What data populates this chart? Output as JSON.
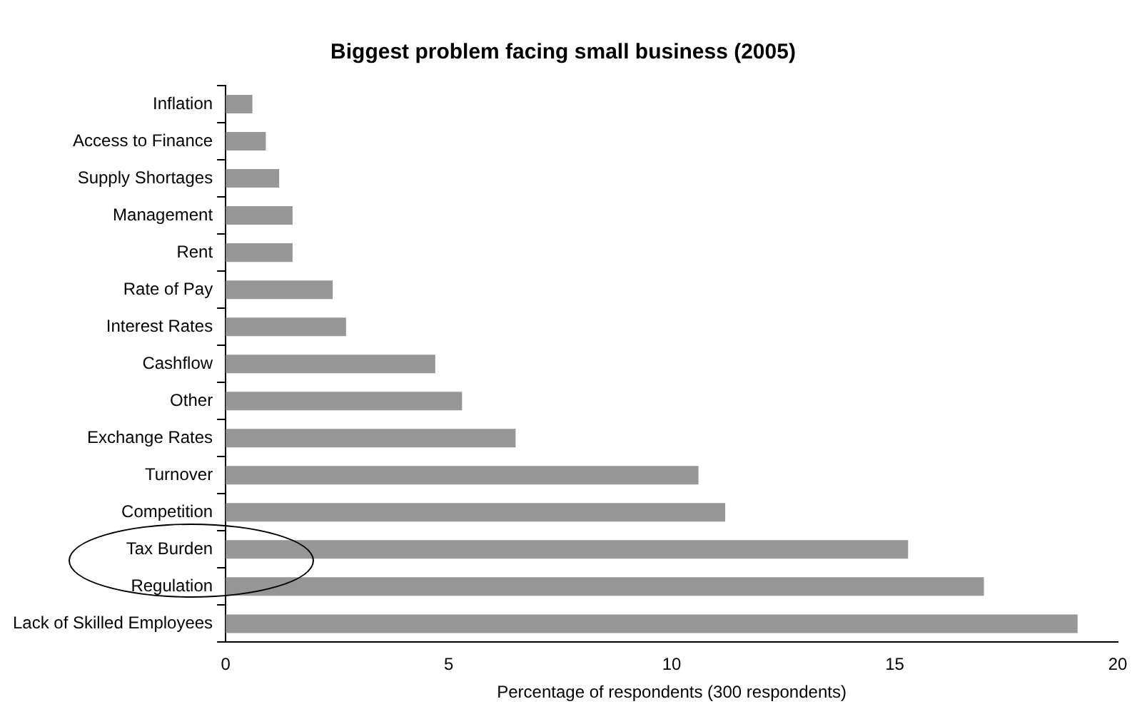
{
  "chart_data": {
    "type": "bar",
    "orientation": "horizontal",
    "title": "Biggest problem facing small business (2005)",
    "xlabel": "Percentage of respondents (300 respondents)",
    "categories": [
      "Inflation",
      "Access to Finance",
      "Supply Shortages",
      "Management",
      "Rent",
      "Rate of Pay",
      "Interest Rates",
      "Cashflow",
      "Other",
      "Exchange Rates",
      "Turnover",
      "Competition",
      "Tax Burden",
      "Regulation",
      "Lack of Skilled Employees"
    ],
    "values": [
      0.6,
      0.9,
      1.2,
      1.5,
      1.5,
      2.4,
      2.7,
      4.7,
      5.3,
      6.5,
      10.6,
      11.2,
      15.3,
      17.0,
      19.1
    ],
    "color": "#969696",
    "xlim": [
      0,
      20
    ],
    "xticks": [
      0,
      5,
      10,
      15,
      20
    ],
    "grid": false,
    "legend": false
  }
}
